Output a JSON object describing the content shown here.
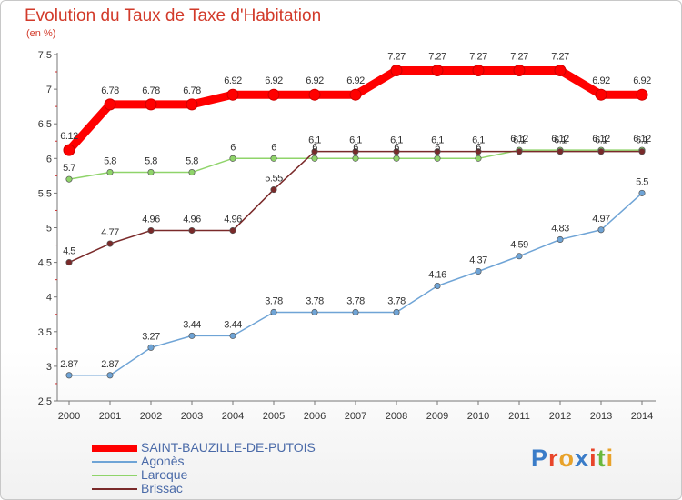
{
  "header": {
    "title": "Evolution du Taux de Taxe d'Habitation",
    "unit": "(en %)"
  },
  "logo": {
    "text": "Proxiti",
    "colors": [
      "#3a7cc8",
      "#e8452a",
      "#e8a22a",
      "#3a7cc8",
      "#e8452a",
      "#6ab83c",
      "#e8a22a"
    ]
  },
  "chart_data": {
    "type": "line",
    "x": [
      "2000",
      "2001",
      "2002",
      "2003",
      "2004",
      "2005",
      "2006",
      "2007",
      "2008",
      "2009",
      "2010",
      "2011",
      "2012",
      "2013",
      "2014"
    ],
    "y_ticks": [
      "2.5",
      "3",
      "3.5",
      "4",
      "4.5",
      "5",
      "5.5",
      "6",
      "6.5",
      "7",
      "7.5"
    ],
    "ylim": [
      2.5,
      7.5
    ],
    "grid": false,
    "legend_position": "bottom-left",
    "series": [
      {
        "name": "SAINT-BAUZILLE-DE-PUTOIS",
        "color": "#ff0000",
        "values": [
          6.12,
          6.78,
          6.78,
          6.78,
          6.92,
          6.92,
          6.92,
          6.92,
          7.27,
          7.27,
          7.27,
          7.27,
          7.27,
          6.92,
          6.92
        ],
        "labels": [
          "6.12",
          "6.78",
          "6.78",
          "6.78",
          "6.92",
          "6.92",
          "6.92",
          "6.92",
          "7.27",
          "7.27",
          "7.27",
          "7.27",
          "7.27",
          "6.92",
          "6.92"
        ]
      },
      {
        "name": "Agonès",
        "color": "#6fa4d6",
        "values": [
          2.87,
          2.87,
          3.27,
          3.44,
          3.44,
          3.78,
          3.78,
          3.78,
          3.78,
          4.16,
          4.37,
          4.59,
          4.83,
          4.97,
          5.5
        ],
        "labels": [
          "2.87",
          "2.87",
          "3.27",
          "3.44",
          "3.44",
          "3.78",
          "3.78",
          "3.78",
          "3.78",
          "4.16",
          "4.37",
          "4.59",
          "4.83",
          "4.97",
          "5.5"
        ]
      },
      {
        "name": "Laroque",
        "color": "#8fd46a",
        "values": [
          5.7,
          5.8,
          5.8,
          5.8,
          6,
          6,
          6,
          6,
          6,
          6,
          6,
          6.12,
          6.12,
          6.12,
          6.12
        ],
        "labels": [
          "5.7",
          "5.8",
          "5.8",
          "5.8",
          "6",
          "6",
          "6",
          "6",
          "6",
          "6",
          "6",
          "6.12",
          "6.12",
          "6.12",
          "6.12"
        ]
      },
      {
        "name": "Brissac",
        "color": "#7a2a2a",
        "values": [
          4.5,
          4.77,
          4.96,
          4.96,
          4.96,
          5.55,
          6.1,
          6.1,
          6.1,
          6.1,
          6.1,
          6.1,
          6.1,
          6.1,
          6.1
        ],
        "labels": [
          "4.5",
          "4.77",
          "4.96",
          "4.96",
          "4.96",
          "5.55",
          "6.1",
          "6.1",
          "6.1",
          "6.1",
          "6.1",
          "6.1",
          "6.1",
          "6.1",
          "6.1"
        ]
      }
    ]
  }
}
